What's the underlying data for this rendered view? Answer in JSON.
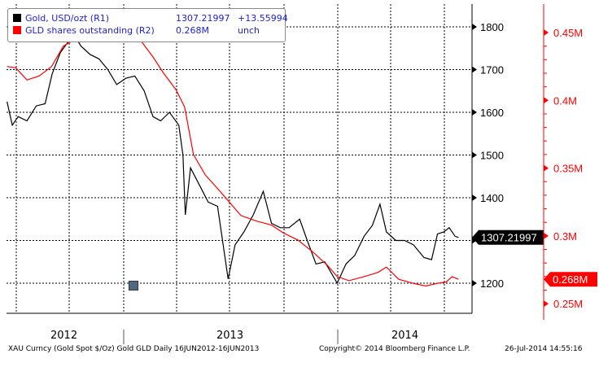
{
  "legend": {
    "items": [
      {
        "label": "Gold, USD/ozt (R1)",
        "value": "1307.21997",
        "change": "+13.55994",
        "color": "#000000"
      },
      {
        "label": "GLD shares outstanding (R2)",
        "value": "0.268M",
        "change": "unch",
        "color": "#ff0000"
      }
    ]
  },
  "footer": {
    "source": "XAU Curncy (Gold Spot  $/Oz) Gold GLD  Daily 16JUN2012-16JUN2013",
    "copyright": "Copyright© 2014 Bloomberg Finance L.P.",
    "timestamp": "26-Jul-2014 14:55:16"
  },
  "chart_data": {
    "type": "line",
    "x_range": [
      "2012-06-16",
      "2014-07-26"
    ],
    "x_tick_labels": [
      "2012",
      "2013",
      "2014"
    ],
    "grid": true,
    "legend_placement": "top-left",
    "axes": {
      "left_gold": {
        "ticks": [
          1800,
          1700,
          1600,
          1500,
          1400,
          1300,
          1200
        ],
        "tick_labels": [
          "1800",
          "1700",
          "1600",
          "1500",
          "1400",
          "",
          "1200"
        ],
        "range": [
          1150,
          1855
        ],
        "last_value_label": "1307.21997"
      },
      "right_gld": {
        "ticks": [
          0.45,
          0.4,
          0.35,
          0.3,
          0.25
        ],
        "tick_labels": [
          "0.45M",
          "0.4M",
          "0.35M",
          "0.3M",
          "0.25M"
        ],
        "range": [
          0.245,
          0.47
        ],
        "last_value_label": "0.268M"
      }
    },
    "series": [
      {
        "name": "Gold, USD/ozt (R1)",
        "axis": "left_gold",
        "color": "#000000",
        "x": [
          "2012-06-16",
          "2012-06-25",
          "2012-07-05",
          "2012-07-20",
          "2012-08-05",
          "2012-08-20",
          "2012-09-01",
          "2012-09-15",
          "2012-10-01",
          "2012-10-05",
          "2012-10-20",
          "2012-11-05",
          "2012-11-20",
          "2012-12-05",
          "2012-12-20",
          "2013-01-05",
          "2013-01-20",
          "2013-02-05",
          "2013-02-20",
          "2013-03-05",
          "2013-03-20",
          "2013-04-05",
          "2013-04-12",
          "2013-04-16",
          "2013-04-25",
          "2013-05-10",
          "2013-05-25",
          "2013-06-10",
          "2013-06-28",
          "2013-07-10",
          "2013-07-25",
          "2013-08-10",
          "2013-08-27",
          "2013-09-10",
          "2013-09-25",
          "2013-10-10",
          "2013-10-28",
          "2013-11-10",
          "2013-11-25",
          "2013-12-10",
          "2013-12-31",
          "2014-01-15",
          "2014-01-30",
          "2014-02-15",
          "2014-03-01",
          "2014-03-14",
          "2014-03-25",
          "2014-04-10",
          "2014-04-25",
          "2014-05-10",
          "2014-05-28",
          "2014-06-10",
          "2014-06-20",
          "2014-07-01",
          "2014-07-10",
          "2014-07-20",
          "2014-07-26"
        ],
        "values": [
          1625,
          1570,
          1590,
          1580,
          1615,
          1620,
          1690,
          1740,
          1770,
          1790,
          1755,
          1735,
          1725,
          1700,
          1665,
          1680,
          1685,
          1650,
          1590,
          1580,
          1600,
          1570,
          1500,
          1360,
          1470,
          1430,
          1390,
          1380,
          1210,
          1290,
          1320,
          1360,
          1415,
          1340,
          1330,
          1330,
          1350,
          1300,
          1245,
          1250,
          1200,
          1245,
          1265,
          1310,
          1335,
          1385,
          1320,
          1300,
          1300,
          1290,
          1260,
          1255,
          1315,
          1320,
          1330,
          1310,
          1307
        ]
      },
      {
        "name": "GLD shares outstanding (R2)",
        "axis": "right_gld",
        "color": "#ff0000",
        "x": [
          "2012-06-16",
          "2012-07-01",
          "2012-07-20",
          "2012-08-10",
          "2012-08-31",
          "2012-09-20",
          "2012-10-10",
          "2012-11-01",
          "2012-12-01",
          "2012-12-20",
          "2013-01-10",
          "2013-02-01",
          "2013-02-20",
          "2013-03-10",
          "2013-03-31",
          "2013-04-15",
          "2013-04-30",
          "2013-05-20",
          "2013-06-10",
          "2013-06-30",
          "2013-07-20",
          "2013-08-15",
          "2013-09-10",
          "2013-10-01",
          "2013-10-25",
          "2013-11-20",
          "2013-12-15",
          "2013-12-31",
          "2014-01-20",
          "2014-02-15",
          "2014-03-10",
          "2014-03-25",
          "2014-04-15",
          "2014-05-10",
          "2014-05-31",
          "2014-06-20",
          "2014-07-05",
          "2014-07-15",
          "2014-07-26"
        ],
        "values": [
          0.425,
          0.424,
          0.415,
          0.418,
          0.425,
          0.44,
          0.445,
          0.447,
          0.448,
          0.447,
          0.446,
          0.443,
          0.432,
          0.42,
          0.408,
          0.395,
          0.36,
          0.345,
          0.335,
          0.325,
          0.315,
          0.311,
          0.308,
          0.302,
          0.297,
          0.288,
          0.278,
          0.27,
          0.267,
          0.27,
          0.273,
          0.277,
          0.268,
          0.265,
          0.263,
          0.265,
          0.266,
          0.27,
          0.268
        ]
      }
    ]
  }
}
